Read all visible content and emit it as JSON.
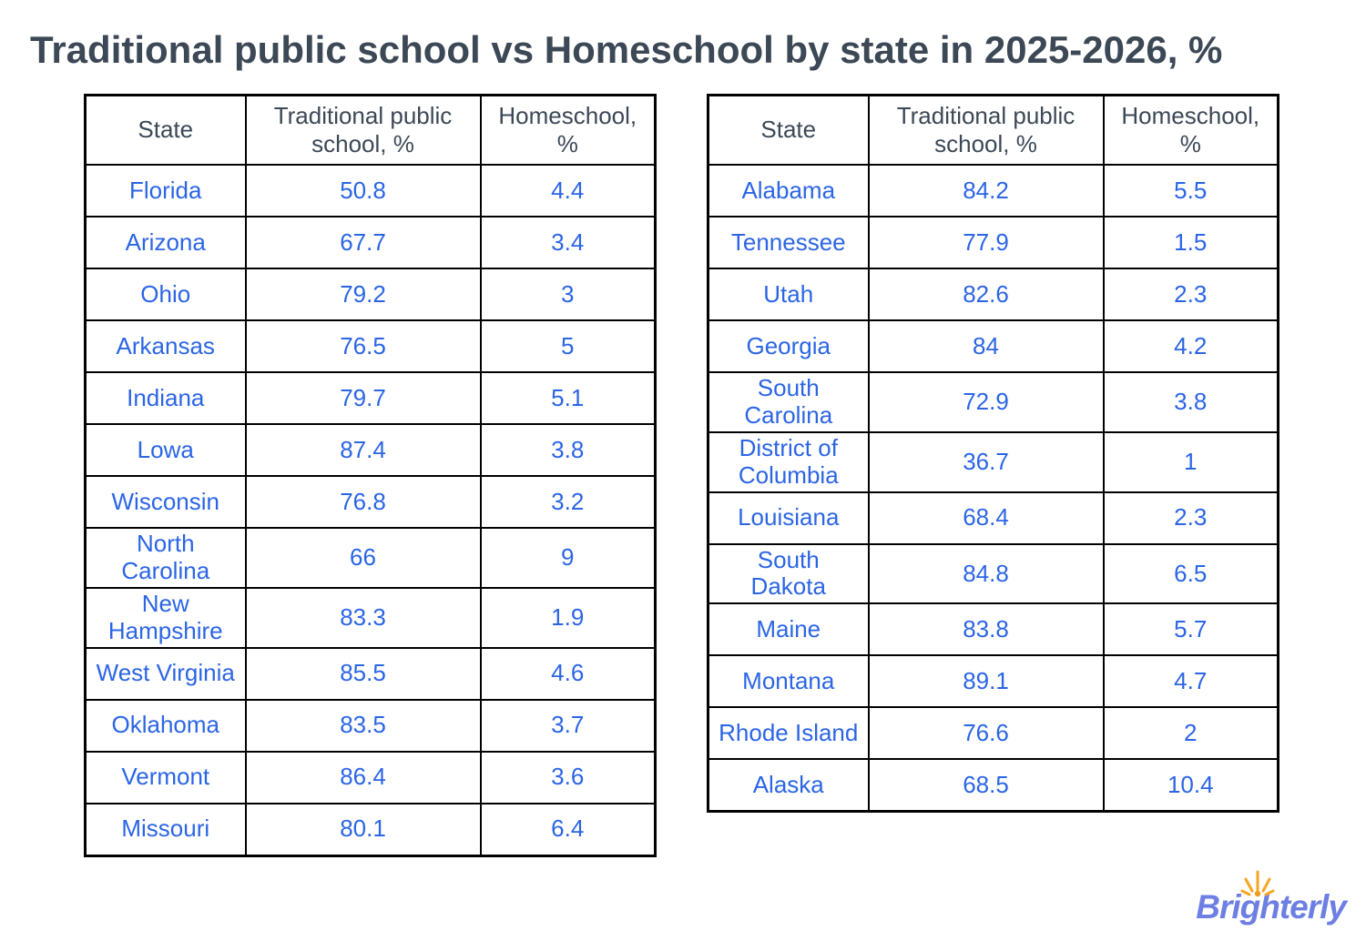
{
  "chart_data": {
    "type": "table",
    "title": "Traditional public school vs Homeschool by state in 2025-2026, %",
    "columns": [
      "State",
      "Traditional public school, %",
      "Homeschool, %"
    ],
    "left_table": {
      "rows": [
        [
          "Florida",
          50.8,
          4.4
        ],
        [
          "Arizona",
          67.7,
          3.4
        ],
        [
          "Ohio",
          79.2,
          3
        ],
        [
          "Arkansas",
          76.5,
          5
        ],
        [
          "Indiana",
          79.7,
          5.1
        ],
        [
          "Lowa",
          87.4,
          3.8
        ],
        [
          "Wisconsin",
          76.8,
          3.2
        ],
        [
          "North Carolina",
          66,
          9
        ],
        [
          "New Hampshire",
          83.3,
          1.9
        ],
        [
          "West Virginia",
          85.5,
          4.6
        ],
        [
          "Oklahoma",
          83.5,
          3.7
        ],
        [
          "Vermont",
          86.4,
          3.6
        ],
        [
          "Missouri",
          80.1,
          6.4
        ]
      ]
    },
    "right_table": {
      "rows": [
        [
          "Alabama",
          84.2,
          5.5
        ],
        [
          "Tennessee",
          77.9,
          1.5
        ],
        [
          "Utah",
          82.6,
          2.3
        ],
        [
          "Georgia",
          84,
          4.2
        ],
        [
          "South Carolina",
          72.9,
          3.8
        ],
        [
          "District of Columbia",
          36.7,
          1
        ],
        [
          "Louisiana",
          68.4,
          2.3
        ],
        [
          "South Dakota",
          84.8,
          6.5
        ],
        [
          "Maine",
          83.8,
          5.7
        ],
        [
          "Montana",
          89.1,
          4.7
        ],
        [
          "Rhode Island",
          76.6,
          2
        ],
        [
          "Alaska",
          68.5,
          10.4
        ]
      ]
    }
  },
  "logo": {
    "text": "Brighterly",
    "icon": "sunburst-icon"
  },
  "colors": {
    "title_text": "#3c4856",
    "cell_text": "#2b65e5",
    "table_border": "#000000",
    "logo_text": "#6e7fe3",
    "logo_sun": "#f6a623",
    "background": "#ffffff"
  }
}
